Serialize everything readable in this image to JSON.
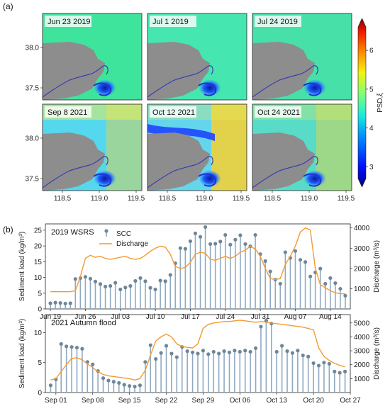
{
  "panel_a_label": "(a)",
  "panel_b_label": "(b)",
  "maps": {
    "dates": [
      "Jun 23 2019",
      "Jul 1 2019",
      "Jul 24 2019",
      "Sep 8 2021",
      "Oct 12 2021",
      "Oct 24 2021"
    ],
    "lat_ticks": [
      "38.0",
      "37.5"
    ],
    "lon_ticks": [
      "118.5",
      "119.0",
      "119.5"
    ],
    "colorbar_label": "PSD,ξ",
    "colorbar_ticks": [
      "6",
      "5",
      "4",
      "3"
    ]
  },
  "colors": {
    "stem": "#8fa9c2",
    "point": "#6e8798",
    "discharge": "#f39a34",
    "land": "#8d8d8d",
    "river": "#3a3fb0"
  },
  "chart_data": [
    {
      "type": "line",
      "title": "2019 WSRS",
      "legend": [
        "SCC",
        "Discharge"
      ],
      "legend_position": "top-center",
      "ylabel": "Sediment load (kg/m³)",
      "y2label": "Discharge (m³/s)",
      "ylim": [
        0,
        27
      ],
      "y2lim": [
        0,
        4200
      ],
      "yticks": [
        "0",
        "5",
        "10",
        "15",
        "20",
        "25"
      ],
      "y2ticks": [
        "1000",
        "2000",
        "3000",
        "4000"
      ],
      "xticks": [
        "Jun 19",
        "Jun 26",
        "Jul 03",
        "Jul 10",
        "Jul 17",
        "Jul 24",
        "Jul 31",
        "Aug 07",
        "Aug 14"
      ],
      "x_start": "Jun 19",
      "scc": [
        1.8,
        2.0,
        1.9,
        1.7,
        1.8,
        9.5,
        9.8,
        10.2,
        9.6,
        8.7,
        7.9,
        7.1,
        7.3,
        8.3,
        6.2,
        6.8,
        7.3,
        8.9,
        9.8,
        8.8,
        6.7,
        6.2,
        9.0,
        8.8,
        10.8,
        14.5,
        19.3,
        19.1,
        21.5,
        24.0,
        22.9,
        26.0,
        20.6,
        20.7,
        21.4,
        23.5,
        20.4,
        22.0,
        23.4,
        20.6,
        19.9,
        23.5,
        17.4,
        15.2,
        11.9,
        9.3,
        8.0,
        18.0,
        16.2,
        18.4,
        15.6,
        14.9,
        10.3,
        11.6,
        12.8,
        8.0,
        9.8,
        8.2,
        6.4,
        4.2
      ],
      "discharge": [
        850,
        850,
        850,
        850,
        850,
        900,
        1600,
        2500,
        2650,
        2550,
        2600,
        2500,
        2450,
        2500,
        2550,
        2600,
        2500,
        2450,
        2500,
        2650,
        2850,
        3000,
        3100,
        3050,
        2700,
        2100,
        2000,
        2050,
        2300,
        2700,
        2800,
        2750,
        2450,
        2400,
        2500,
        2600,
        2500,
        2600,
        2800,
        2900,
        3100,
        2950,
        2600,
        2000,
        1500,
        1450,
        1500,
        2200,
        2600,
        3100,
        3800,
        4000,
        3900,
        2000,
        1200,
        1050,
        900,
        800,
        750,
        750
      ]
    },
    {
      "type": "line",
      "title": "2021 Autumn flood",
      "ylabel": "Sediment load (kg/m³)",
      "y2label": "Discharge (m³/s)",
      "ylim": [
        0,
        13
      ],
      "y2lim": [
        0,
        5600
      ],
      "yticks": [
        "0",
        "5",
        "10"
      ],
      "y2ticks": [
        "1000",
        "2000",
        "3000",
        "4000",
        "5000"
      ],
      "xticks": [
        "Sep 01",
        "Sep 08",
        "Sep 15",
        "Sep 22",
        "Sep 29",
        "Oct 06",
        "Oct 13",
        "Oct 20",
        "Oct 27"
      ],
      "x_start": "Aug 31",
      "scc": [
        1.2,
        2.2,
        8.1,
        7.7,
        7.6,
        7.5,
        7.3,
        5.1,
        4.7,
        3.6,
        2.4,
        2.0,
        1.8,
        1.6,
        1.3,
        1.1,
        1.0,
        1.2,
        5.1,
        7.9,
        5.6,
        6.6,
        7.8,
        6.5,
        5.9,
        7.6,
        6.9,
        6.7,
        6.5,
        7.0,
        6.4,
        6.8,
        6.5,
        6.9,
        6.7,
        7.0,
        6.8,
        7.0,
        6.8,
        7.4,
        11.0,
        12.0,
        11.5,
        6.8,
        7.8,
        6.9,
        6.6,
        7.0,
        6.2,
        6.0,
        4.9,
        4.5,
        5.0,
        4.8,
        3.5,
        3.3,
        3.5
      ],
      "discharge": [
        900,
        1000,
        1500,
        2000,
        2450,
        2500,
        2350,
        2050,
        1800,
        1500,
        1300,
        1200,
        1150,
        1100,
        1050,
        1000,
        900,
        1000,
        1600,
        2700,
        3700,
        4000,
        4200,
        4000,
        3500,
        3300,
        3250,
        3200,
        3500,
        4600,
        4900,
        5000,
        5050,
        5100,
        5100,
        5150,
        5200,
        5150,
        5100,
        5050,
        5100,
        5050,
        5000,
        4950,
        4900,
        4850,
        4800,
        4750,
        4700,
        4600,
        4500,
        3200,
        2600,
        2300,
        2100,
        1950,
        1850
      ]
    }
  ]
}
